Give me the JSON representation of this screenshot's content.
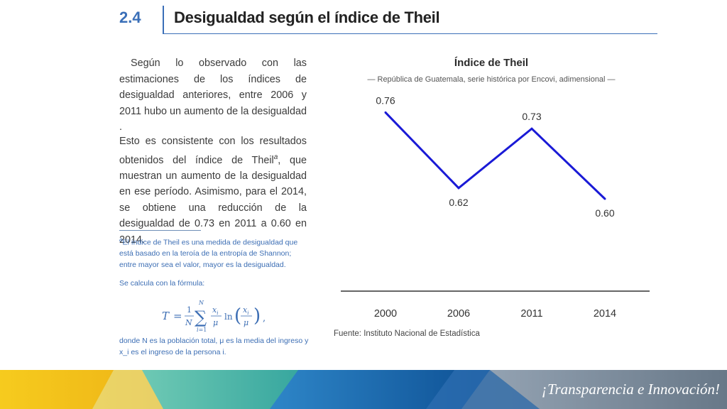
{
  "header": {
    "section_number": "2.4",
    "title": "Desigualdad según el índice de Theil"
  },
  "body": {
    "paragraph1": "Según lo observado con las estimaciones de los índices de desigualdad anteriores, entre 2006 y 2011 hubo un aumento de la desigualdad .",
    "paragraph2_before": "Esto es consistente con los resultados obtenidos del índice de Theil",
    "paragraph2_sup": "a",
    "paragraph2_after": ", que muestran un aumento de la desigualdad en ese período. Asimismo, para el 2014, se obtiene una reducción de la desigualdad de 0.73 en 2011 a 0.60 en 2014."
  },
  "footnote": {
    "marker": "a",
    "text": "El índice de Theil es una medida de desigualdad que está basado en la teroía de la entropía de Shannon; entre mayor sea el valor, mayor es la desigualdad.",
    "formula_intro": "Se calcula con la fórmula:",
    "formula": "T = 1/N Σ_{i=1}^{N} x_i/μ ln(x_i/μ) ,",
    "definition": "donde N es la población total, μ es la media del ingreso y x_i es el ingreso de la persona i."
  },
  "chart_data": {
    "type": "line",
    "title": "Índice de Theil",
    "subtitle": "— República de Guatemala, serie histórica por Encovi, adimensional —",
    "categories": [
      "2000",
      "2006",
      "2011",
      "2014"
    ],
    "series": [
      {
        "values": [
          0.76,
          0.62,
          0.73,
          0.6
        ],
        "color": "#1a1ad6"
      }
    ],
    "data_labels": [
      "0.76",
      "0.62",
      "0.73",
      "0.60"
    ],
    "ylim": [
      0.45,
      0.8
    ],
    "grid": false,
    "legend": "none"
  },
  "source": "Fuente: Instituto Nacional de Estadística",
  "footer": {
    "slogan": "¡Transparencia e Innovación!",
    "colors": [
      "#f3c41b",
      "#3fb4a6",
      "#1f6cb0",
      "#7d8c9c"
    ]
  }
}
